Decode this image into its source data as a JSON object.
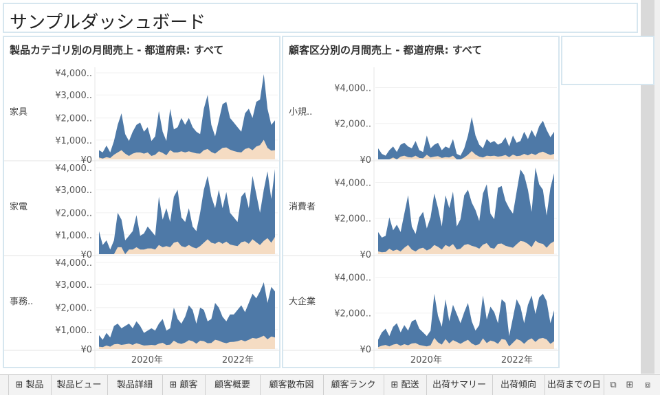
{
  "dashboard_title": "サンプルダッシュボード",
  "chart_data": [
    {
      "type": "area",
      "title": "製品カテゴリ別の月間売上 - 都道府県: すべて",
      "rows": [
        "家具",
        "家電",
        "事務.."
      ],
      "x": [
        "2019-01",
        "2019-02",
        "2019-03",
        "2019-04",
        "2019-05",
        "2019-06",
        "2019-07",
        "2019-08",
        "2019-09",
        "2019-10",
        "2019-11",
        "2019-12",
        "2020-01",
        "2020-02",
        "2020-03",
        "2020-04",
        "2020-05",
        "2020-06",
        "2020-07",
        "2020-08",
        "2020-09",
        "2020-10",
        "2020-11",
        "2020-12",
        "2021-01",
        "2021-02",
        "2021-03",
        "2021-04",
        "2021-05",
        "2021-06",
        "2021-07",
        "2021-08",
        "2021-09",
        "2021-10",
        "2021-11",
        "2021-12",
        "2022-01",
        "2022-02",
        "2022-03",
        "2022-04",
        "2022-05",
        "2022-06",
        "2022-07",
        "2022-08",
        "2022-09",
        "2022-10",
        "2022-11",
        "2022-12"
      ],
      "x_tick_labels": [
        "2020年",
        "2022年"
      ],
      "y_tick_labels": [
        "¥4,000..",
        "¥3,000..",
        "¥2,000..",
        "¥1,000..",
        "¥0"
      ],
      "ylim": [
        0,
        4000
      ],
      "series_colors": {
        "total": "#4e79a7",
        "part": "#f5dcc3"
      },
      "panels": [
        {
          "label": "家具",
          "total": [
            400,
            300,
            600,
            300,
            800,
            1500,
            2000,
            1100,
            800,
            1200,
            1500,
            1600,
            1200,
            1400,
            800,
            1000,
            2100,
            1200,
            800,
            2200,
            1300,
            1400,
            1800,
            1500,
            1800,
            1400,
            1200,
            1100,
            2200,
            2800,
            1500,
            1000,
            1700,
            2400,
            2500,
            1800,
            1600,
            1400,
            1200,
            2000,
            2200,
            1800,
            2500,
            2600,
            3700,
            2200,
            1500,
            1700
          ],
          "part": [
            80,
            40,
            100,
            60,
            200,
            300,
            400,
            250,
            150,
            250,
            300,
            300,
            250,
            300,
            150,
            200,
            350,
            280,
            180,
            400,
            300,
            300,
            350,
            300,
            350,
            300,
            260,
            250,
            400,
            450,
            320,
            250,
            380,
            500,
            520,
            420,
            360,
            320,
            300,
            450,
            500,
            400,
            560,
            620,
            850,
            500,
            380,
            400
          ]
        },
        {
          "label": "家電",
          "total": [
            1000,
            400,
            600,
            200,
            600,
            1800,
            1500,
            600,
            800,
            1000,
            1700,
            800,
            900,
            1200,
            1000,
            800,
            2500,
            1500,
            2000,
            1400,
            2500,
            2800,
            1600,
            1400,
            2000,
            1200,
            1000,
            1800,
            2800,
            3400,
            2500,
            2000,
            2800,
            2000,
            2700,
            1800,
            1600,
            1400,
            2500,
            2700,
            2000,
            3400,
            2600,
            1800,
            2800,
            3600,
            2400,
            3700
          ],
          "part": [
            0,
            0,
            0,
            0,
            0,
            300,
            300,
            0,
            200,
            200,
            300,
            200,
            200,
            250,
            250,
            200,
            400,
            300,
            350,
            300,
            500,
            550,
            350,
            300,
            400,
            300,
            250,
            350,
            500,
            650,
            500,
            450,
            550,
            450,
            550,
            420,
            380,
            350,
            520,
            560,
            450,
            650,
            520,
            400,
            580,
            700,
            500,
            750
          ]
        },
        {
          "label": "事務..",
          "total": [
            600,
            400,
            700,
            500,
            1000,
            1100,
            900,
            1000,
            1100,
            900,
            1200,
            1000,
            700,
            800,
            900,
            800,
            1100,
            1300,
            800,
            900,
            1800,
            1300,
            1100,
            1400,
            1900,
            1700,
            1100,
            1800,
            1700,
            1200,
            1300,
            2000,
            1800,
            1400,
            1200,
            1500,
            1500,
            1700,
            1900,
            1600,
            2000,
            2400,
            2200,
            2500,
            2900,
            2000,
            2700,
            2500
          ],
          "part": [
            100,
            80,
            150,
            100,
            200,
            220,
            180,
            200,
            230,
            180,
            250,
            200,
            150,
            160,
            180,
            160,
            230,
            270,
            170,
            190,
            360,
            260,
            220,
            280,
            380,
            340,
            230,
            360,
            340,
            250,
            260,
            400,
            360,
            290,
            250,
            300,
            310,
            340,
            390,
            330,
            400,
            480,
            450,
            500,
            580,
            420,
            540,
            500
          ]
        }
      ]
    },
    {
      "type": "area",
      "title": "顧客区分別の月間売上 - 都道府県: すべて",
      "rows": [
        "小規..",
        "消費者",
        "大企業"
      ],
      "x": [
        "2019-01",
        "2019-02",
        "2019-03",
        "2019-04",
        "2019-05",
        "2019-06",
        "2019-07",
        "2019-08",
        "2019-09",
        "2019-10",
        "2019-11",
        "2019-12",
        "2020-01",
        "2020-02",
        "2020-03",
        "2020-04",
        "2020-05",
        "2020-06",
        "2020-07",
        "2020-08",
        "2020-09",
        "2020-10",
        "2020-11",
        "2020-12",
        "2021-01",
        "2021-02",
        "2021-03",
        "2021-04",
        "2021-05",
        "2021-06",
        "2021-07",
        "2021-08",
        "2021-09",
        "2021-10",
        "2021-11",
        "2021-12",
        "2022-01",
        "2022-02",
        "2022-03",
        "2022-04",
        "2022-05",
        "2022-06",
        "2022-07",
        "2022-08",
        "2022-09",
        "2022-10",
        "2022-11",
        "2022-12"
      ],
      "x_tick_labels": [
        "2020年",
        "2022年"
      ],
      "y_tick_labels": [
        "¥4,000..",
        "¥2,000..",
        "¥0"
      ],
      "ylim": [
        0,
        5000
      ],
      "series_colors": {
        "total": "#4e79a7",
        "part": "#f5dcc3"
      },
      "panels": [
        {
          "label": "小規..",
          "total": [
            600,
            300,
            200,
            500,
            700,
            400,
            800,
            900,
            700,
            600,
            1000,
            500,
            400,
            1300,
            600,
            800,
            900,
            500,
            700,
            600,
            1100,
            300,
            200,
            600,
            1300,
            2300,
            1300,
            800,
            600,
            1100,
            900,
            1000,
            800,
            900,
            1200,
            700,
            1300,
            900,
            1000,
            1500,
            1100,
            1600,
            1200,
            1800,
            2100,
            1600,
            1200,
            1500
          ],
          "part": [
            0,
            0,
            0,
            0,
            100,
            0,
            150,
            200,
            120,
            100,
            200,
            80,
            60,
            250,
            100,
            150,
            180,
            80,
            120,
            100,
            200,
            0,
            0,
            100,
            250,
            450,
            260,
            150,
            100,
            200,
            180,
            200,
            150,
            180,
            240,
            120,
            260,
            180,
            200,
            300,
            220,
            320,
            240,
            360,
            420,
            320,
            240,
            300
          ]
        },
        {
          "label": "消費者",
          "total": [
            1200,
            900,
            1000,
            2000,
            1300,
            1600,
            1200,
            2200,
            3200,
            1500,
            1100,
            2000,
            2300,
            1400,
            2000,
            3300,
            2500,
            1500,
            3200,
            2500,
            3400,
            1500,
            1900,
            3200,
            3500,
            2800,
            2400,
            1800,
            3300,
            3800,
            2200,
            1900,
            3600,
            3700,
            2900,
            2500,
            2200,
            3400,
            4600,
            4300,
            3500,
            2300,
            4700,
            3800,
            3500,
            2100,
            3600,
            4400
          ],
          "part": [
            150,
            100,
            120,
            300,
            180,
            250,
            150,
            350,
            500,
            250,
            150,
            300,
            350,
            200,
            300,
            500,
            400,
            250,
            500,
            400,
            550,
            250,
            300,
            500,
            550,
            450,
            400,
            300,
            520,
            600,
            350,
            300,
            560,
            580,
            460,
            400,
            350,
            540,
            720,
            680,
            560,
            380,
            740,
            600,
            560,
            350,
            580,
            700
          ]
        },
        {
          "label": "大企業",
          "total": [
            500,
            900,
            1100,
            700,
            1200,
            1400,
            900,
            1300,
            1000,
            1500,
            1600,
            1100,
            900,
            700,
            1000,
            3000,
            1800,
            1200,
            2700,
            1500,
            2400,
            1900,
            1400,
            2000,
            2500,
            1500,
            1000,
            1300,
            2900,
            1600,
            2300,
            2000,
            1400,
            2700,
            2500,
            700,
            1700,
            2700,
            2300,
            1400,
            2400,
            2900,
            1900,
            2800,
            3000,
            2600,
            1400,
            2100
          ],
          "part": [
            100,
            180,
            220,
            140,
            240,
            280,
            180,
            260,
            200,
            300,
            320,
            220,
            180,
            140,
            200,
            600,
            360,
            240,
            540,
            300,
            480,
            380,
            280,
            400,
            500,
            300,
            200,
            260,
            580,
            320,
            460,
            400,
            280,
            540,
            500,
            140,
            340,
            540,
            460,
            280,
            480,
            580,
            380,
            560,
            600,
            520,
            280,
            420
          ]
        }
      ]
    }
  ],
  "tabs": [
    {
      "label": "⊞ 製品"
    },
    {
      "label": "製品ビュー"
    },
    {
      "label": "製品詳細"
    },
    {
      "label": "⊞ 顧客"
    },
    {
      "label": "顧客概要"
    },
    {
      "label": "顧客散布図"
    },
    {
      "label": "顧客ランク"
    },
    {
      "label": "⊞ 配送"
    },
    {
      "label": "出荷サマリー"
    },
    {
      "label": "出荷傾向"
    },
    {
      "label": "出荷までの日"
    }
  ],
  "tab_icons": [
    "new-dashboard-icon",
    "new-sheet-icon",
    "new-story-icon"
  ]
}
